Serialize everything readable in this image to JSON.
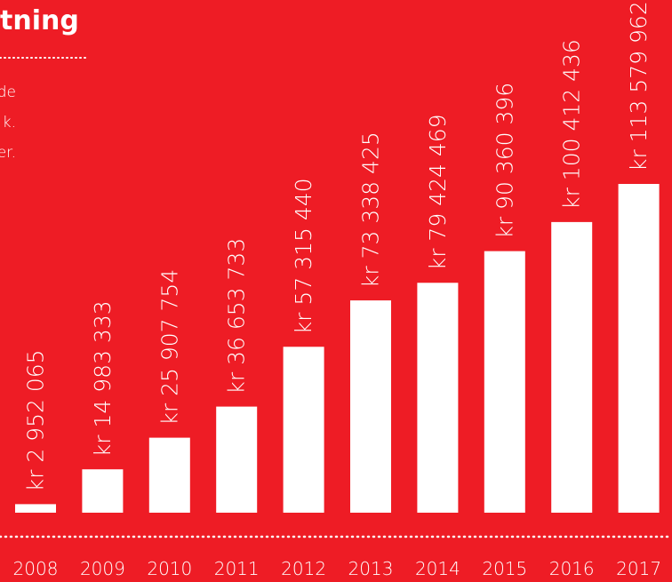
{
  "chart_data": {
    "type": "bar",
    "title": "tning",
    "subtitle_lines": [
      "de",
      "k.",
      "er."
    ],
    "categories": [
      "2008",
      "2009",
      "2010",
      "2011",
      "2012",
      "2013",
      "2014",
      "2015",
      "2016",
      "2017"
    ],
    "values": [
      2952065,
      14983333,
      25907754,
      36653733,
      57315440,
      73338425,
      79424469,
      90360396,
      100412436,
      113579962
    ],
    "value_labels": [
      "kr 2 952 065",
      "kr 14 983 333",
      "kr 25 907 754",
      "kr 36 653 733",
      "kr 57 315 440",
      "kr 73 338 425",
      "kr 79 424 469",
      "kr 90 360 396",
      "kr 100 412 436",
      "kr 113 579 962"
    ],
    "color": "#ffffff"
  }
}
